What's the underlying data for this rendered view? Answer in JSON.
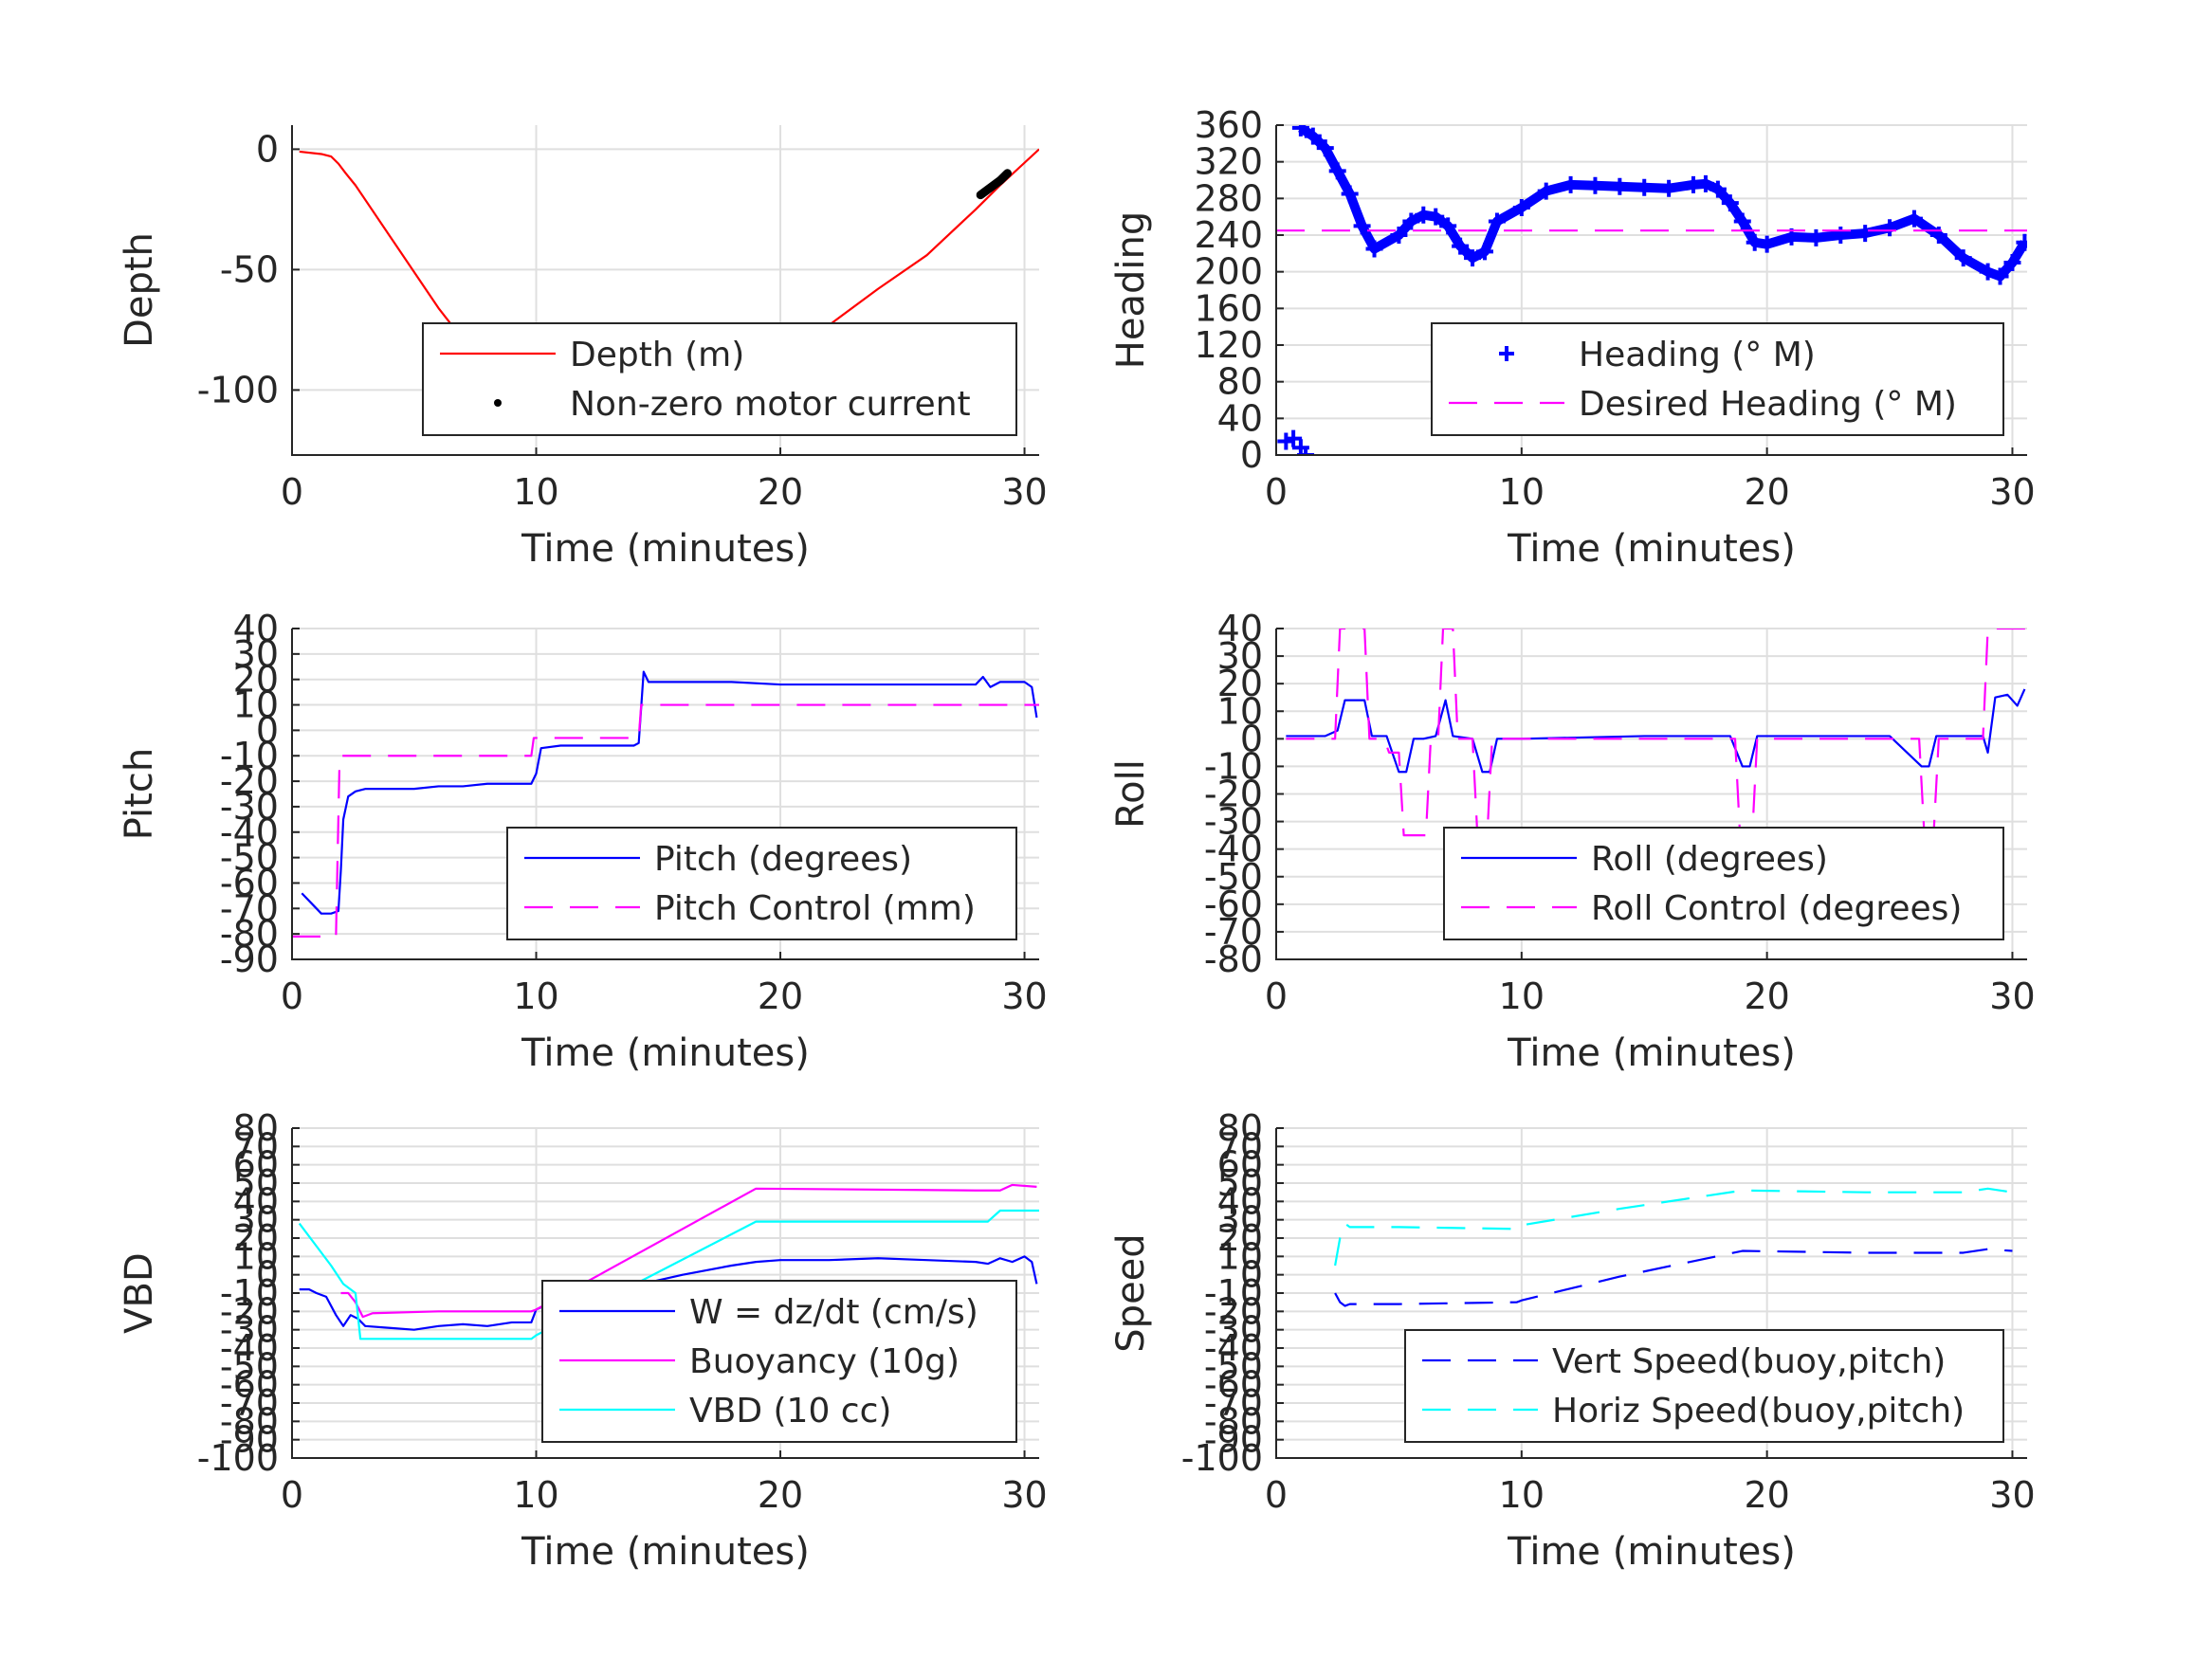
{
  "chart_data": [
    {
      "id": "depth",
      "type": "line",
      "xlabel": "Time (minutes)",
      "ylabel": "Depth",
      "xlim": [
        0,
        30.6
      ],
      "ylim": [
        -127,
        10
      ],
      "xticks": [
        "0",
        "10",
        "20",
        "30"
      ],
      "yticks": [
        "0",
        "-50",
        "-100"
      ],
      "grid": true,
      "legend_placement": "lower-right",
      "series": [
        {
          "name": "Depth (m)",
          "color": "#ff0000",
          "style": "solid",
          "x": [
            0.3,
            1.2,
            1.6,
            1.9,
            2.2,
            2.6,
            4,
            6,
            8,
            10,
            12,
            14.2,
            16,
            18,
            19,
            20,
            22,
            24,
            26,
            28,
            28.5,
            29,
            30.6
          ],
          "y": [
            -1,
            -2,
            -3,
            -6,
            -10,
            -15,
            -36,
            -66,
            -92,
            -104,
            -111,
            -116,
            -112,
            -101,
            -93,
            -86,
            -73,
            -58,
            -44,
            -25,
            -20,
            -15,
            0
          ]
        },
        {
          "name": "Non-zero motor current",
          "color": "#000000",
          "style": "dots",
          "segments": [
            {
              "x": [
                10,
                11,
                12,
                13,
                14,
                14.5,
                15,
                16,
                17,
                18,
                18.8
              ],
              "y": [
                -103,
                -107,
                -111,
                -114,
                -116,
                -116,
                -115,
                -112,
                -107,
                -101,
                -96
              ]
            },
            {
              "x": [
                28.2,
                28.6,
                29,
                29.3
              ],
              "y": [
                -19,
                -16,
                -13,
                -10
              ]
            }
          ]
        }
      ]
    },
    {
      "id": "heading",
      "type": "scatter",
      "xlabel": "Time (minutes)",
      "ylabel": "Heading",
      "xlim": [
        0,
        30.6
      ],
      "ylim": [
        0,
        360
      ],
      "xticks": [
        "0",
        "10",
        "20",
        "30"
      ],
      "yticks": [
        "0",
        "40",
        "80",
        "120",
        "160",
        "200",
        "240",
        "280",
        "320",
        "360"
      ],
      "grid": true,
      "legend_placement": "lower-right",
      "series": [
        {
          "name": "Heading (° M)",
          "color": "#0000ff",
          "style": "plus",
          "segments": [
            {
              "x": [
                0.4,
                0.7,
                1.0,
                1.2
              ],
              "y": [
                15,
                18,
                8,
                0
              ]
            },
            {
              "x": [
                1.0,
                1.5,
                2,
                2.5,
                3,
                3.5,
                4,
                5,
                5.5,
                6,
                6.5,
                7,
                7.5,
                8,
                8.5,
                9,
                10,
                11,
                12,
                13,
                14,
                15,
                16,
                17,
                17.5,
                18,
                18.5,
                19,
                19.5,
                20,
                21,
                22,
                23,
                24,
                25,
                26,
                27,
                28,
                29,
                29.5,
                30,
                30.5
              ],
              "y": [
                357,
                348,
                335,
                310,
                285,
                250,
                225,
                240,
                255,
                262,
                260,
                250,
                228,
                215,
                222,
                255,
                270,
                288,
                295,
                294,
                293,
                292,
                291,
                295,
                296,
                290,
                275,
                255,
                232,
                230,
                238,
                237,
                240,
                242,
                248,
                258,
                240,
                215,
                200,
                195,
                210,
                232
              ]
            }
          ]
        },
        {
          "name": "Desired Heading (° M)",
          "color": "#ff00ff",
          "style": "dashed",
          "x": [
            0,
            30.6
          ],
          "y": [
            245,
            245
          ]
        }
      ]
    },
    {
      "id": "pitch",
      "type": "line",
      "xlabel": "Time (minutes)",
      "ylabel": "Pitch",
      "xlim": [
        0,
        30.6
      ],
      "ylim": [
        -90,
        40
      ],
      "xticks": [
        "0",
        "10",
        "20",
        "30"
      ],
      "yticks": [
        "-90",
        "-80",
        "-70",
        "-60",
        "-50",
        "-40",
        "-30",
        "-20",
        "-10",
        "0",
        "10",
        "20",
        "30",
        "40"
      ],
      "grid": true,
      "legend_placement": "lower-right",
      "series": [
        {
          "name": "Pitch (degrees)",
          "color": "#0000ff",
          "style": "solid",
          "x": [
            0.4,
            0.8,
            1.2,
            1.6,
            1.9,
            2.0,
            2.1,
            2.3,
            2.6,
            3,
            4,
            5,
            6,
            7,
            8,
            9,
            9.8,
            10,
            10.2,
            11,
            12,
            13,
            14,
            14.2,
            14.4,
            14.6,
            15,
            16,
            18,
            20,
            22,
            24,
            26,
            28,
            28.3,
            28.6,
            29,
            30,
            30.3,
            30.5
          ],
          "y": [
            -64,
            -68,
            -72,
            -72,
            -71,
            -55,
            -35,
            -26,
            -24,
            -23,
            -23,
            -23,
            -22,
            -22,
            -21,
            -21,
            -21,
            -17,
            -7,
            -6,
            -6,
            -6,
            -6,
            -5,
            23,
            19,
            19,
            19,
            19,
            18,
            18,
            18,
            18,
            18,
            21,
            17,
            19,
            19,
            17,
            5
          ]
        },
        {
          "name": "Pitch Control (mm)",
          "color": "#ff00ff",
          "style": "dashed",
          "x": [
            0,
            1.8,
            1.95,
            2.05,
            9.8,
            9.9,
            14.2,
            14.3,
            30.6
          ],
          "y": [
            -81,
            -81,
            -10,
            -10,
            -10,
            -3,
            -3,
            10,
            10
          ]
        }
      ]
    },
    {
      "id": "roll",
      "type": "line",
      "xlabel": "Time (minutes)",
      "ylabel": "Roll",
      "xlim": [
        0,
        30.6
      ],
      "ylim": [
        -80,
        40
      ],
      "xticks": [
        "0",
        "10",
        "20",
        "30"
      ],
      "yticks": [
        "-80",
        "-70",
        "-60",
        "-50",
        "-40",
        "-30",
        "-20",
        "-10",
        "0",
        "10",
        "20",
        "30",
        "40"
      ],
      "grid": true,
      "legend_placement": "lower-right",
      "series": [
        {
          "name": "Roll (degrees)",
          "color": "#0000ff",
          "style": "solid",
          "x": [
            0.4,
            2,
            2.5,
            2.8,
            3.6,
            3.9,
            4.5,
            5,
            5.3,
            5.6,
            6,
            6.5,
            6.9,
            7.2,
            8,
            8.4,
            8.7,
            9,
            10,
            15,
            18.5,
            19,
            19.3,
            19.6,
            20,
            25,
            26.3,
            26.6,
            26.9,
            27.2,
            28,
            28.8,
            29,
            29.3,
            29.8,
            30.2,
            30.5
          ],
          "y": [
            1,
            1,
            3,
            14,
            14,
            1,
            1,
            -12,
            -12,
            0,
            0,
            1,
            14,
            1,
            0,
            -12,
            -12,
            0,
            0,
            1,
            1,
            -10,
            -10,
            1,
            1,
            1,
            -10,
            -10,
            1,
            1,
            1,
            1,
            -5,
            15,
            16,
            12,
            18
          ]
        },
        {
          "name": "Roll Control (degrees)",
          "color": "#ff00ff",
          "style": "dashed",
          "segments": [
            {
              "x": [
                0.4,
                2.4,
                2.6,
                3.6,
                3.8,
                4.4,
                4.6,
                5.0,
                5.2,
                6.1,
                6.3,
                6.6,
                6.8,
                7.2,
                7.4,
                8.0,
                8.2,
                8.6,
                8.8,
                18.7,
                18.9,
                19.4,
                19.6,
                26.2,
                26.4,
                26.8,
                27.0,
                28.8,
                29.0,
                30.6
              ],
              "y": [
                0,
                0,
                40,
                40,
                0,
                0,
                -5,
                -5,
                -35,
                -35,
                0,
                0,
                40,
                40,
                0,
                0,
                -35,
                -35,
                0,
                0,
                -35,
                -35,
                0,
                0,
                -33,
                -33,
                0,
                0,
                40,
                40
              ]
            }
          ]
        }
      ]
    },
    {
      "id": "vbd",
      "type": "line",
      "xlabel": "Time (minutes)",
      "ylabel": "VBD",
      "xlim": [
        0,
        30.6
      ],
      "ylim": [
        -100,
        80
      ],
      "xticks": [
        "0",
        "10",
        "20",
        "30"
      ],
      "yticks": [
        "-100",
        "-90",
        "-80",
        "-70",
        "-60",
        "-50",
        "-40",
        "-30",
        "-20",
        "-10",
        "0",
        "10",
        "20",
        "30",
        "40",
        "50",
        "60",
        "70",
        "80"
      ],
      "grid": true,
      "legend_placement": "lower-right",
      "series": [
        {
          "name": "W = dz/dt (cm/s)",
          "color": "#0000ff",
          "style": "solid",
          "x": [
            0.3,
            0.7,
            1.0,
            1.4,
            1.8,
            2.1,
            2.4,
            2.7,
            3,
            4,
            5,
            6,
            7,
            8,
            9,
            9.8,
            10,
            10.5,
            12,
            14,
            16,
            18,
            19,
            20,
            22,
            24,
            26,
            28,
            28.5,
            29,
            29.5,
            30,
            30.3,
            30.5
          ],
          "y": [
            -8,
            -8,
            -10,
            -12,
            -22,
            -28,
            -22,
            -24,
            -28,
            -29,
            -30,
            -28,
            -27,
            -28,
            -26,
            -26,
            -19,
            -16,
            -12,
            -6,
            0,
            5,
            7,
            8,
            8,
            9,
            8,
            7,
            6,
            9,
            7,
            10,
            7,
            -5
          ]
        },
        {
          "name": "Buoyancy (10g)",
          "color": "#ff00ff",
          "style": "solid",
          "x": [
            2.0,
            2.3,
            2.6,
            2.9,
            3.3,
            6,
            9.8,
            10,
            19,
            28,
            29,
            29.5,
            30.5
          ],
          "y": [
            -10,
            -10,
            -15,
            -23,
            -21,
            -20,
            -20,
            -19,
            47,
            46,
            46,
            49,
            48
          ]
        },
        {
          "name": "VBD (10 cc)",
          "color": "#00ffff",
          "style": "solid",
          "x": [
            0.3,
            1.6,
            2.1,
            2.6,
            2.8,
            3,
            9.8,
            10,
            19,
            28.5,
            29,
            30.6
          ],
          "y": [
            28,
            5,
            -5,
            -10,
            -35,
            -35,
            -35,
            -33,
            29,
            29,
            35,
            35
          ]
        }
      ]
    },
    {
      "id": "speed",
      "type": "line",
      "xlabel": "Time (minutes)",
      "ylabel": "Speed",
      "xlim": [
        0,
        30.6
      ],
      "ylim": [
        -100,
        80
      ],
      "xticks": [
        "0",
        "10",
        "20",
        "30"
      ],
      "yticks": [
        "-100",
        "-90",
        "-80",
        "-70",
        "-60",
        "-50",
        "-40",
        "-30",
        "-20",
        "-10",
        "0",
        "10",
        "20",
        "30",
        "40",
        "50",
        "60",
        "70",
        "80"
      ],
      "grid": true,
      "legend_placement": "lower-right",
      "series": [
        {
          "name": "Vert Speed(buoy,pitch)",
          "color": "#0000ff",
          "style": "dashed",
          "x": [
            2.4,
            2.6,
            2.8,
            3,
            5,
            9.8,
            10,
            14,
            19,
            24,
            28,
            29,
            30
          ],
          "y": [
            -10,
            -15,
            -17,
            -16,
            -16,
            -15,
            -14,
            -1,
            13,
            12,
            12,
            14,
            13
          ]
        },
        {
          "name": "Horiz Speed(buoy,pitch)",
          "color": "#00ffff",
          "style": "dashed",
          "x": [
            2.4,
            2.6,
            2.8,
            3,
            5,
            9.8,
            10,
            14,
            19,
            24,
            28,
            29,
            30
          ],
          "y": [
            5,
            20,
            28,
            26,
            26,
            25,
            27,
            36,
            46,
            45,
            45,
            47,
            45
          ]
        }
      ]
    }
  ]
}
